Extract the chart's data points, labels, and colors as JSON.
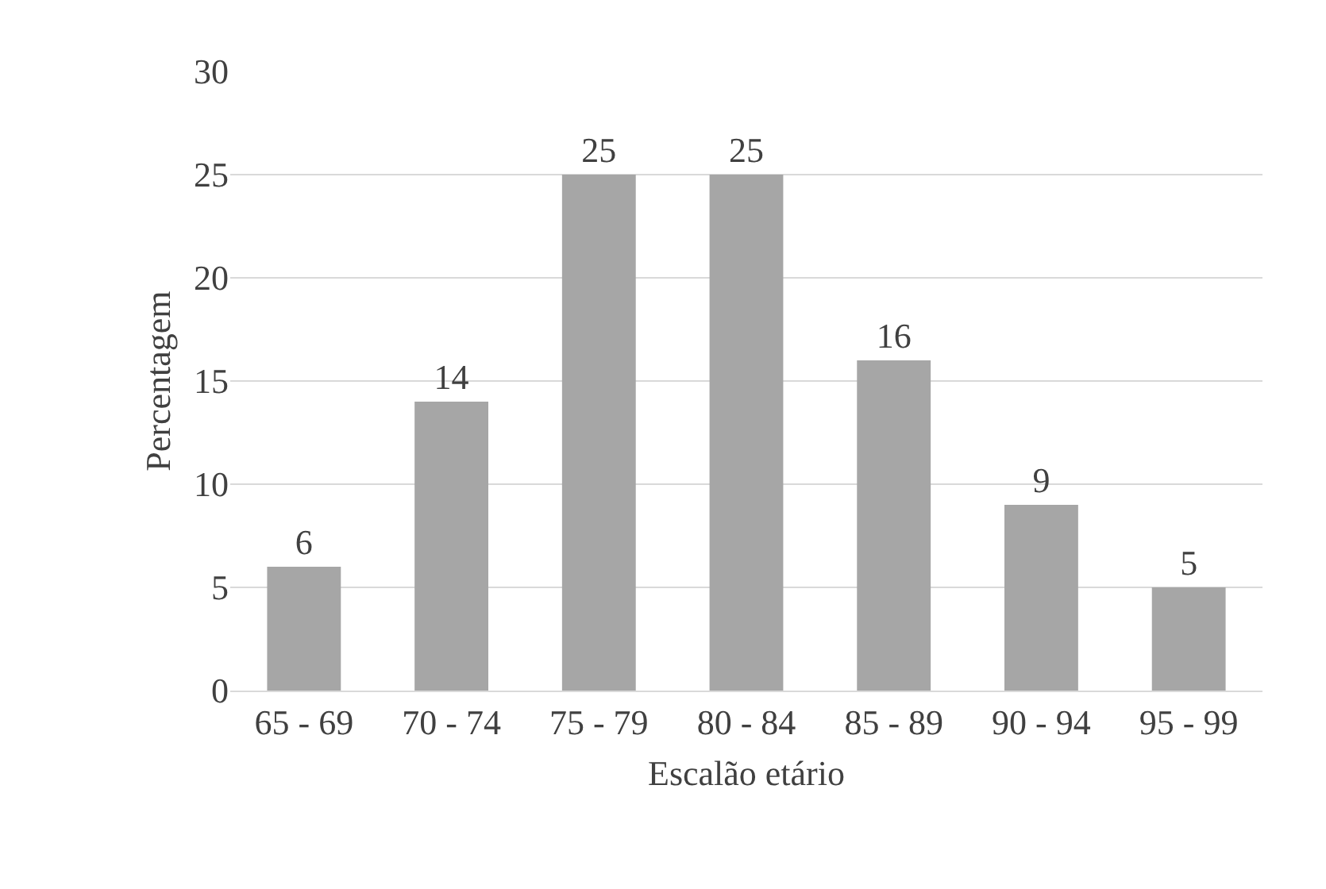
{
  "chart_data": {
    "type": "bar",
    "xlabel": "Escalão etário",
    "ylabel": "Percentagem",
    "categories": [
      "65 - 69",
      "70 - 74",
      "75 - 79",
      "80 - 84",
      "85 - 89",
      "90 - 94",
      "95 - 99"
    ],
    "values": [
      6,
      14,
      25,
      25,
      16,
      9,
      5
    ],
    "color": "#a6a6a6",
    "ylim": [
      0,
      30
    ],
    "yticks": [
      0,
      5,
      10,
      15,
      20,
      25,
      30
    ],
    "grid": "y",
    "data_labels": true,
    "legend": false
  }
}
